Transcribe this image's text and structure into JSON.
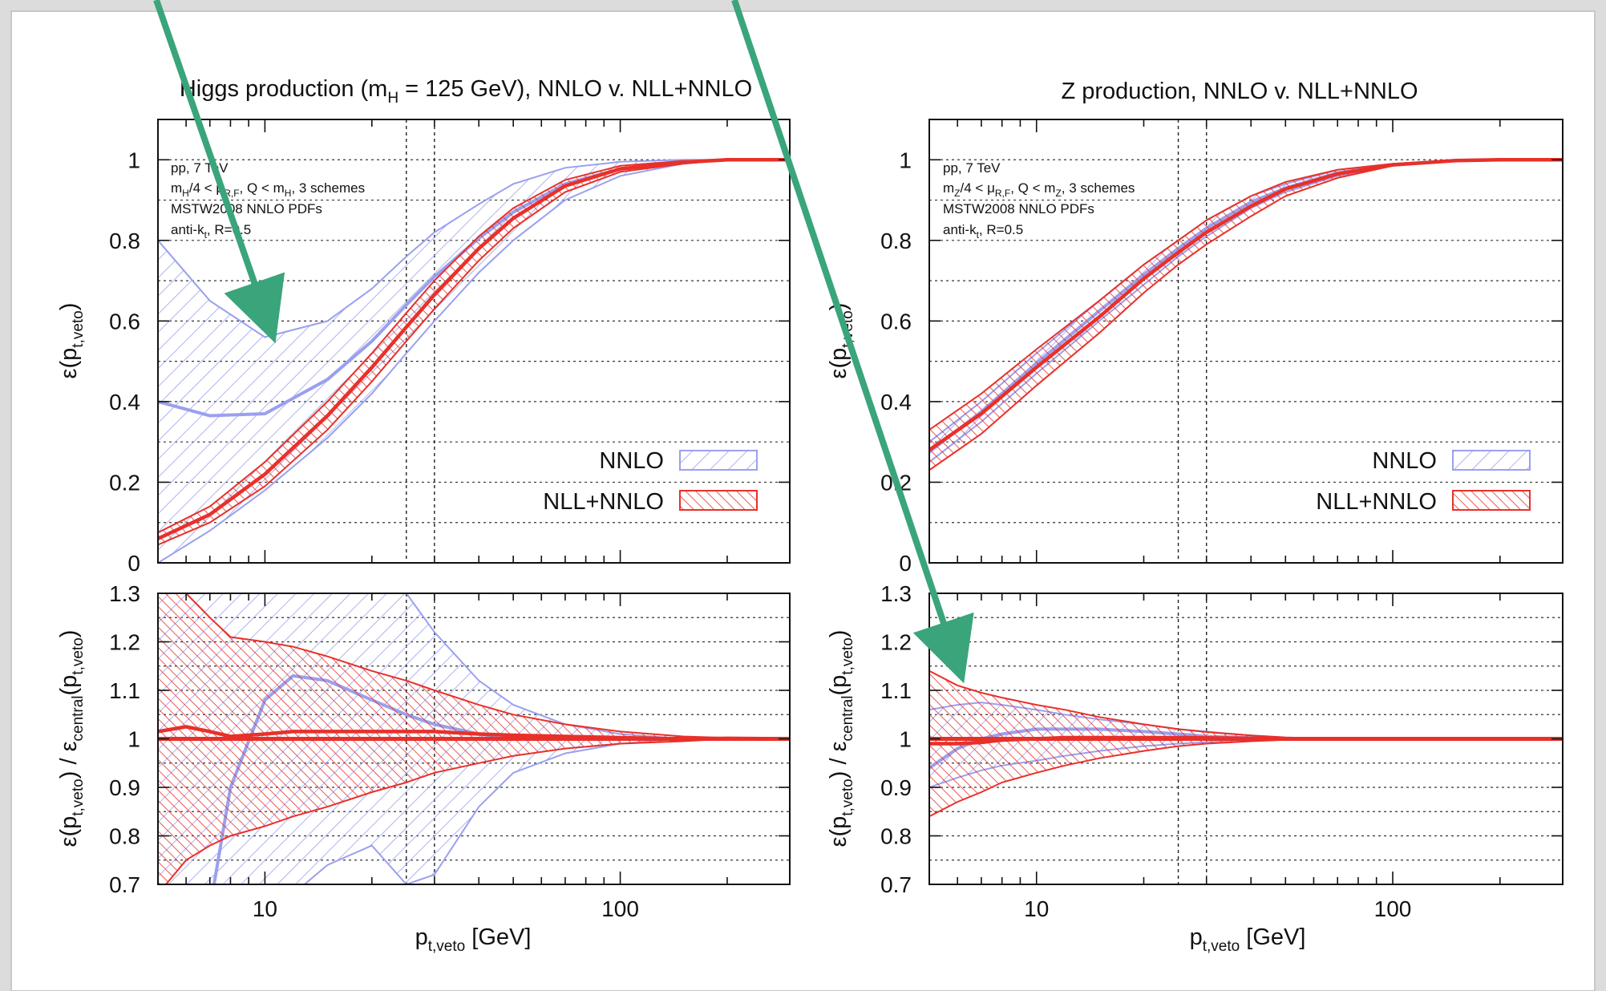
{
  "colors": {
    "nnlo": "#9aa0ee",
    "nllnnlo": "#e8302a",
    "arrow": "#3aa57a",
    "page": "#ffffff",
    "window": "#dcdcdc"
  },
  "panels": [
    {
      "title": "Higgs production (m_H = 125 GeV), NNLO v. NLL+NNLO",
      "info": [
        "pp, 7 TeV",
        "m_H/4 < μ_R,F, Q < m_H, 3 schemes",
        "MSTW2008 NNLO PDFs",
        "anti-k_t, R=0.5"
      ],
      "legend": [
        "NNLO",
        "NLL+NNLO"
      ],
      "ylabel_top": "ε(p_t,veto)",
      "ylabel_bottom": "ε(p_t,veto) / ε_central(p_t,veto)",
      "xlabel": "p_t,veto [GeV]"
    },
    {
      "title": "Z production, NNLO v. NLL+NNLO",
      "info": [
        "pp, 7 TeV",
        "m_Z/4 < μ_R,F, Q < m_Z, 3 schemes",
        "MSTW2008 NNLO PDFs",
        "anti-k_t, R=0.5"
      ],
      "legend": [
        "NNLO",
        "NLL+NNLO"
      ],
      "ylabel_top": "ε(p_t,veto)",
      "ylabel_bottom": "ε(p_t,veto) / ε_central(p_t,veto)",
      "xlabel": "p_t,veto [GeV]"
    }
  ],
  "chart_data": [
    {
      "type": "area",
      "title": "Higgs production (m_H = 125 GeV), NNLO v. NLL+NNLO",
      "xlabel": "p_t,veto [GeV]",
      "ylabel": "ε(p_t,veto)",
      "xscale": "log",
      "xlim": [
        5,
        300
      ],
      "ylim": [
        0,
        1.1
      ],
      "xticks": [
        "10",
        "100"
      ],
      "yticks": [
        "0",
        "0.2",
        "0.4",
        "0.6",
        "0.8",
        "1"
      ],
      "vlines": [
        25,
        30
      ],
      "grid": true,
      "x": [
        5,
        7,
        10,
        15,
        20,
        25,
        30,
        40,
        50,
        70,
        100,
        150,
        200,
        300
      ],
      "series": [
        {
          "name": "NNLO",
          "lower": [
            0.0,
            0.08,
            0.18,
            0.31,
            0.42,
            0.52,
            0.6,
            0.72,
            0.8,
            0.9,
            0.96,
            0.99,
            1.0,
            1.0
          ],
          "upper": [
            0.8,
            0.65,
            0.56,
            0.6,
            0.68,
            0.76,
            0.82,
            0.89,
            0.94,
            0.98,
            0.995,
            1.0,
            1.0,
            1.0
          ]
        },
        {
          "name": "NLL+NNLO",
          "lower": [
            0.045,
            0.1,
            0.19,
            0.33,
            0.45,
            0.55,
            0.63,
            0.75,
            0.83,
            0.92,
            0.97,
            0.99,
            1.0,
            1.0
          ],
          "upper": [
            0.075,
            0.14,
            0.25,
            0.4,
            0.52,
            0.62,
            0.7,
            0.81,
            0.88,
            0.95,
            0.985,
            0.997,
            1.0,
            1.0
          ]
        }
      ]
    },
    {
      "type": "area",
      "title": "",
      "xlabel": "p_t,veto [GeV]",
      "ylabel": "ε(p_t,veto) / ε_central(p_t,veto)",
      "xscale": "log",
      "xlim": [
        5,
        300
      ],
      "ylim": [
        0.7,
        1.3
      ],
      "xticks": [
        "10",
        "100"
      ],
      "yticks": [
        "0.7",
        "0.8",
        "0.9",
        "1",
        "1.1",
        "1.2",
        "1.3"
      ],
      "vlines": [
        25,
        30
      ],
      "grid": true,
      "x": [
        5,
        6,
        7,
        8,
        10,
        12,
        15,
        20,
        25,
        30,
        40,
        50,
        70,
        100,
        150,
        200,
        300
      ],
      "series": [
        {
          "name": "NNLO",
          "lower": [
            0.5,
            0.5,
            0.5,
            0.55,
            0.62,
            0.68,
            0.74,
            0.78,
            0.7,
            0.72,
            0.86,
            0.93,
            0.97,
            0.99,
            1.0,
            1.0,
            1.0
          ],
          "upper": [
            1.5,
            1.5,
            1.5,
            1.5,
            1.5,
            1.5,
            1.45,
            1.35,
            1.3,
            1.22,
            1.12,
            1.07,
            1.03,
            1.01,
            1.0,
            1.0,
            1.0
          ],
          "central": [
            0.5,
            0.5,
            0.65,
            0.9,
            1.08,
            1.13,
            1.12,
            1.08,
            1.05,
            1.03,
            1.01,
            1.0,
            1.0,
            1.0,
            1.0,
            1.0,
            1.0
          ]
        },
        {
          "name": "NLL+NNLO",
          "lower": [
            0.68,
            0.75,
            0.78,
            0.8,
            0.82,
            0.84,
            0.86,
            0.89,
            0.91,
            0.93,
            0.95,
            0.965,
            0.98,
            0.99,
            0.995,
            1.0,
            1.0
          ],
          "upper": [
            1.35,
            1.3,
            1.25,
            1.21,
            1.2,
            1.19,
            1.17,
            1.14,
            1.12,
            1.1,
            1.07,
            1.05,
            1.03,
            1.015,
            1.005,
            1.002,
            1.0
          ]
        }
      ]
    },
    {
      "type": "area",
      "title": "Z production, NNLO v. NLL+NNLO",
      "xlabel": "p_t,veto [GeV]",
      "ylabel": "ε(p_t,veto)",
      "xscale": "log",
      "xlim": [
        5,
        300
      ],
      "ylim": [
        0,
        1.1
      ],
      "xticks": [
        "10",
        "100"
      ],
      "yticks": [
        "0",
        "0.2",
        "0.4",
        "0.6",
        "0.8",
        "1"
      ],
      "vlines": [
        25,
        30
      ],
      "grid": true,
      "x": [
        5,
        7,
        10,
        15,
        20,
        25,
        30,
        40,
        50,
        70,
        100,
        150,
        200,
        300
      ],
      "series": [
        {
          "name": "NNLO",
          "lower": [
            0.25,
            0.35,
            0.47,
            0.6,
            0.69,
            0.76,
            0.81,
            0.88,
            0.92,
            0.96,
            0.985,
            0.997,
            1.0,
            1.0
          ],
          "upper": [
            0.3,
            0.4,
            0.52,
            0.65,
            0.74,
            0.8,
            0.85,
            0.91,
            0.94,
            0.975,
            0.99,
            0.999,
            1.0,
            1.0
          ]
        },
        {
          "name": "NLL+NNLO",
          "lower": [
            0.23,
            0.32,
            0.44,
            0.57,
            0.67,
            0.74,
            0.79,
            0.86,
            0.91,
            0.955,
            0.985,
            0.997,
            1.0,
            1.0
          ],
          "upper": [
            0.33,
            0.42,
            0.53,
            0.65,
            0.74,
            0.8,
            0.85,
            0.91,
            0.945,
            0.975,
            0.99,
            0.999,
            1.0,
            1.0
          ]
        }
      ]
    },
    {
      "type": "area",
      "title": "",
      "xlabel": "p_t,veto [GeV]",
      "ylabel": "ε(p_t,veto) / ε_central(p_t,veto)",
      "xscale": "log",
      "xlim": [
        5,
        300
      ],
      "ylim": [
        0.7,
        1.3
      ],
      "xticks": [
        "10",
        "100"
      ],
      "yticks": [
        "0.7",
        "0.8",
        "0.9",
        "1",
        "1.1",
        "1.2",
        "1.3"
      ],
      "vlines": [
        25,
        30
      ],
      "grid": true,
      "x": [
        5,
        6,
        7,
        8,
        10,
        12,
        15,
        20,
        25,
        30,
        40,
        50,
        70,
        100,
        150,
        200,
        300
      ],
      "series": [
        {
          "name": "NNLO",
          "lower": [
            0.9,
            0.92,
            0.935,
            0.945,
            0.955,
            0.965,
            0.975,
            0.985,
            0.99,
            0.993,
            0.997,
            1.0,
            1.0,
            1.0,
            1.0,
            1.0,
            1.0
          ],
          "upper": [
            1.06,
            1.07,
            1.075,
            1.07,
            1.06,
            1.05,
            1.04,
            1.03,
            1.02,
            1.015,
            1.007,
            1.003,
            1.0,
            1.0,
            1.0,
            1.0,
            1.0
          ],
          "central": [
            0.94,
            0.98,
            1.0,
            1.01,
            1.02,
            1.02,
            1.02,
            1.015,
            1.01,
            1.005,
            1.002,
            1.0,
            1.0,
            1.0,
            1.0,
            1.0,
            1.0
          ]
        },
        {
          "name": "NLL+NNLO",
          "lower": [
            0.84,
            0.87,
            0.89,
            0.91,
            0.93,
            0.945,
            0.96,
            0.975,
            0.985,
            0.99,
            0.995,
            0.998,
            1.0,
            1.0,
            1.0,
            1.0,
            1.0
          ],
          "upper": [
            1.14,
            1.11,
            1.095,
            1.085,
            1.07,
            1.06,
            1.045,
            1.03,
            1.02,
            1.014,
            1.007,
            1.003,
            1.0,
            1.0,
            1.0,
            1.0,
            1.0
          ]
        }
      ]
    }
  ]
}
